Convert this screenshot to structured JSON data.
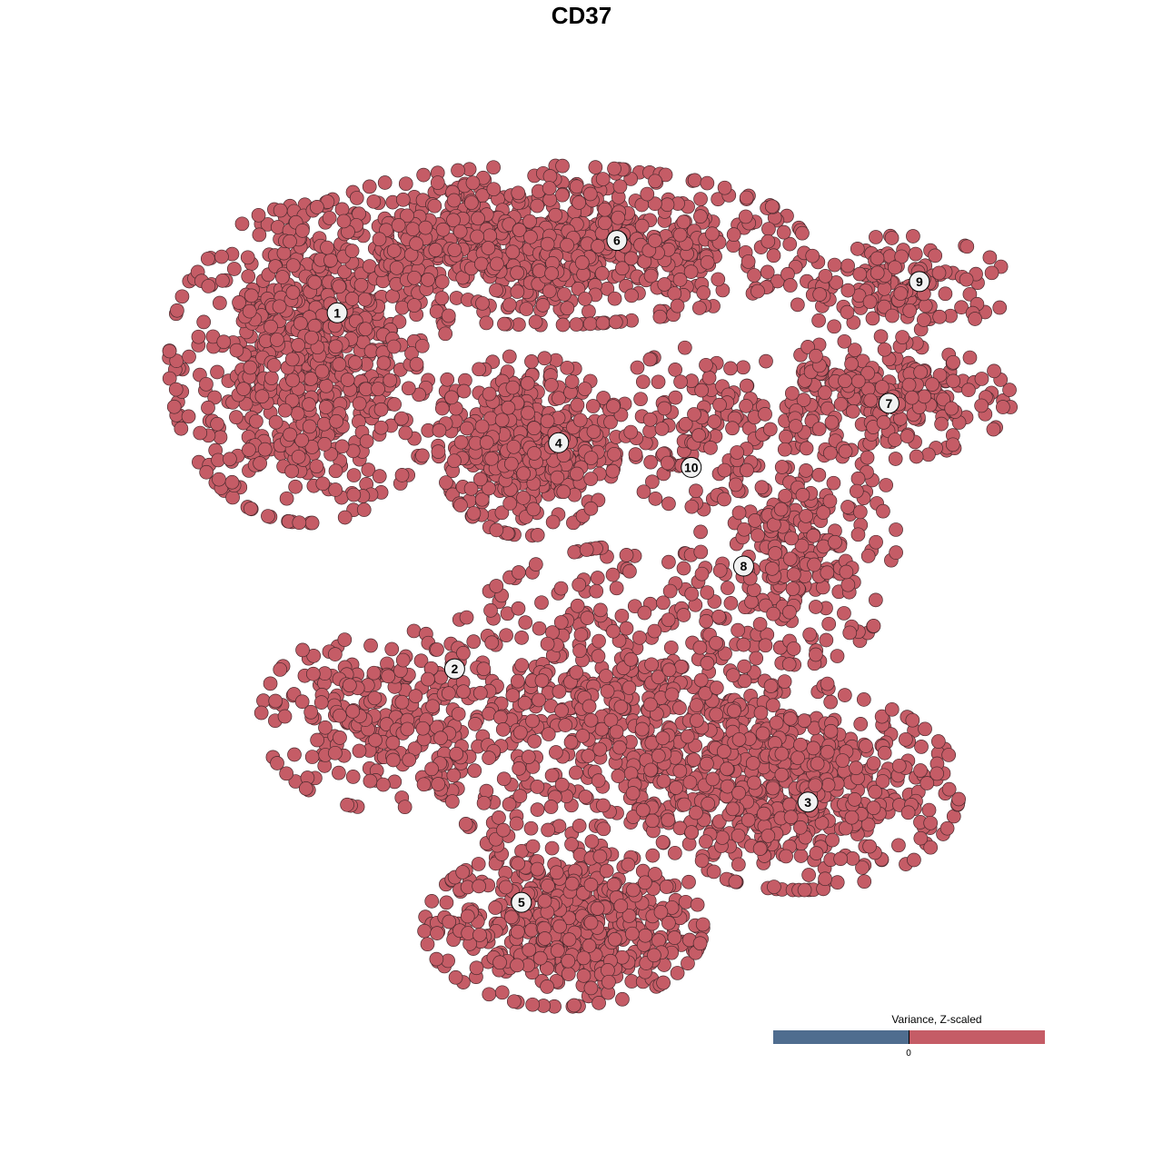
{
  "chart_data": {
    "type": "scatter",
    "title": "CD37",
    "xlabel": "",
    "ylabel": "",
    "xlim": [
      -50,
      50
    ],
    "ylim": [
      -50,
      50
    ],
    "grid": false,
    "axes_visible": false,
    "point_color": "#c55c66",
    "point_edge_color": "#4a2a2e",
    "clusters": [
      {
        "label": "1",
        "label_pos": [
          -31.6,
          32.4
        ],
        "center": [
          -35.0,
          26.2
        ],
        "spread": [
          7.5,
          8.8
        ],
        "n": 700
      },
      {
        "label": "2",
        "label_pos": [
          -17.7,
          -10.9
        ],
        "center": [
          -26.3,
          -16.9
        ],
        "spread": [
          6.5,
          5.0
        ],
        "n": 260
      },
      {
        "label": "3",
        "label_pos": [
          24.1,
          -27.1
        ],
        "center": [
          23.1,
          -25.7
        ],
        "spread": [
          8.6,
          5.5
        ],
        "n": 500
      },
      {
        "label": "4",
        "label_pos": [
          -5.4,
          16.6
        ],
        "center": [
          -9.1,
          16.3
        ],
        "spread": [
          4.8,
          5.0
        ],
        "n": 450
      },
      {
        "label": "5",
        "label_pos": [
          -9.8,
          -39.3
        ],
        "center": [
          -4.8,
          -42.3
        ],
        "spread": [
          7.5,
          4.4
        ],
        "n": 500
      },
      {
        "label": "",
        "label_pos": null,
        "center": [
          2.7,
          -16.9
        ],
        "spread": [
          11.0,
          9.5
        ],
        "n": 700
      },
      {
        "label": "6",
        "label_pos": [
          1.5,
          41.2
        ],
        "center": [
          -7.0,
          40.6
        ],
        "spread": [
          14.0,
          4.4
        ],
        "n": 800
      },
      {
        "label": "7",
        "label_pos": [
          33.7,
          21.4
        ],
        "center": [
          31.7,
          21.8
        ],
        "spread": [
          7.5,
          3.3
        ],
        "n": 250
      },
      {
        "label": "8",
        "label_pos": [
          16.5,
          1.6
        ],
        "center": [
          23.1,
          4.1
        ],
        "spread": [
          5.4,
          6.6
        ],
        "n": 250
      },
      {
        "label": "9",
        "label_pos": [
          37.3,
          36.2
        ],
        "center": [
          35.0,
          35.6
        ],
        "spread": [
          5.9,
          2.8
        ],
        "n": 150
      },
      {
        "label": "10",
        "label_pos": [
          10.3,
          13.6
        ],
        "center": [
          10.2,
          18.5
        ],
        "spread": [
          4.3,
          4.4
        ],
        "n": 120
      }
    ],
    "colorbar": {
      "title": "Variance, Z-scaled",
      "tick_label": "0",
      "low_color": "#4f6d8f",
      "high_color": "#c55c66"
    }
  }
}
